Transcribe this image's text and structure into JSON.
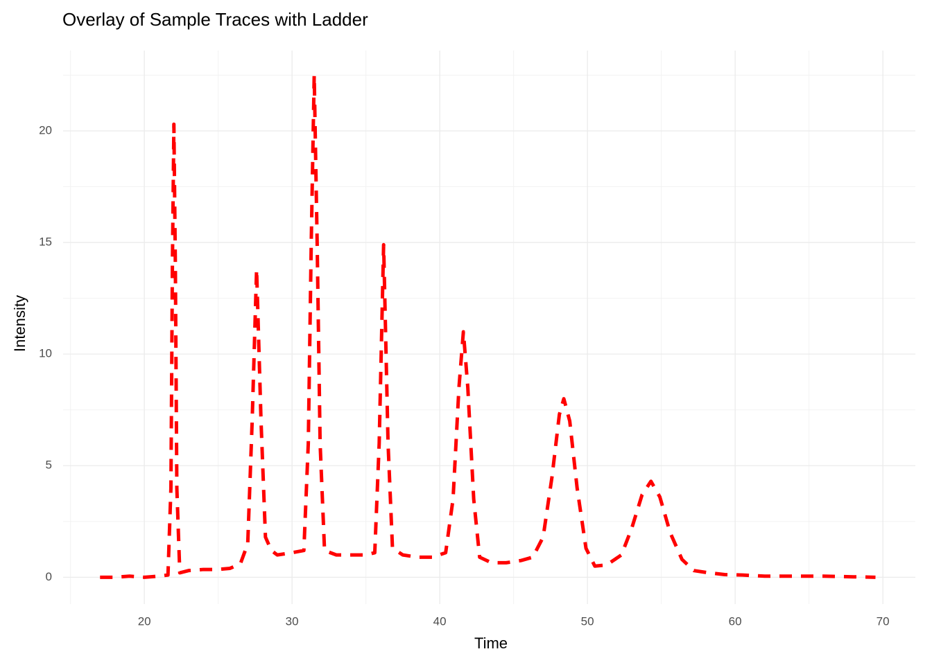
{
  "chart_data": {
    "type": "line",
    "title": "Overlay of Sample Traces with Ladder",
    "x_label": "Time",
    "y_label": "Intensity",
    "x": [
      17.0,
      18.0,
      19.0,
      20.0,
      21.0,
      21.6,
      21.8,
      21.9,
      22.0,
      22.1,
      22.2,
      22.4,
      23.0,
      24.0,
      25.0,
      25.8,
      26.5,
      27.0,
      27.3,
      27.6,
      27.9,
      28.2,
      28.6,
      29.0,
      30.0,
      30.8,
      31.1,
      31.3,
      31.5,
      31.7,
      31.9,
      32.2,
      33.0,
      34.0,
      35.0,
      35.6,
      35.9,
      36.2,
      36.5,
      36.8,
      37.5,
      38.5,
      39.5,
      40.4,
      40.9,
      41.3,
      41.6,
      41.9,
      42.3,
      42.7,
      43.5,
      44.5,
      45.5,
      46.3,
      47.0,
      47.6,
      48.1,
      48.4,
      48.8,
      49.3,
      49.9,
      50.5,
      51.3,
      52.3,
      53.0,
      53.7,
      54.3,
      54.9,
      55.6,
      56.4,
      57.2,
      58.2,
      59.3,
      60.5,
      62.0,
      64.0,
      66.0,
      68.0,
      69.5
    ],
    "series": [
      {
        "color": "#ff0000",
        "dashed": true,
        "values": [
          0,
          0,
          0.05,
          0,
          0.05,
          0.1,
          4,
          14,
          20.3,
          14,
          4,
          0.2,
          0.3,
          0.35,
          0.35,
          0.4,
          0.6,
          1.5,
          7,
          13.8,
          7,
          1.8,
          1.2,
          1.0,
          1.1,
          1.2,
          6,
          15,
          22.5,
          15,
          6,
          1.2,
          1.0,
          1.0,
          1.0,
          1.1,
          6,
          14.9,
          6,
          1.3,
          1.0,
          0.9,
          0.9,
          1.1,
          3.5,
          8.5,
          11.0,
          8.5,
          3.5,
          0.9,
          0.65,
          0.65,
          0.75,
          0.9,
          1.8,
          4.5,
          7.3,
          8.0,
          7.0,
          4.0,
          1.3,
          0.5,
          0.55,
          1.0,
          2.2,
          3.7,
          4.3,
          3.6,
          2.0,
          0.8,
          0.3,
          0.2,
          0.12,
          0.1,
          0.05,
          0.05,
          0.05,
          0.02,
          0
        ]
      }
    ],
    "xlim": [
      14.5,
      72.2
    ],
    "ylim": [
      -1.2,
      23.6
    ],
    "xticks": [
      20,
      30,
      40,
      50,
      60,
      70
    ],
    "yticks": [
      0,
      5,
      10,
      15,
      20
    ],
    "grid": true,
    "minor_grid": true
  }
}
